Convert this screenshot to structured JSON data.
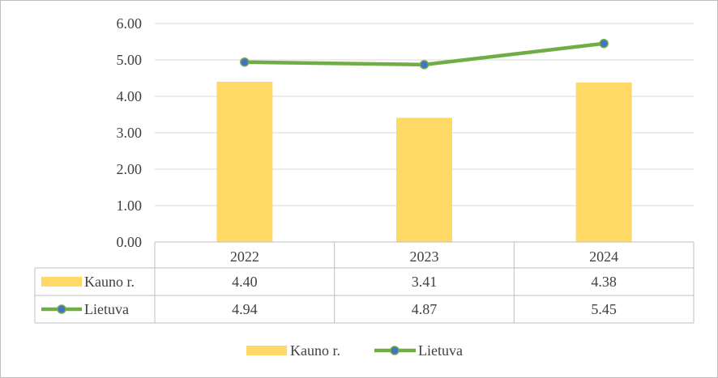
{
  "chart_data": {
    "type": "bar",
    "categories": [
      "2022",
      "2023",
      "2024"
    ],
    "series": [
      {
        "name": "Kauno r.",
        "type": "bar",
        "values": [
          4.4,
          3.41,
          4.38
        ],
        "labels": [
          "4.40",
          "3.41",
          "4.38"
        ],
        "color": "#FFD966"
      },
      {
        "name": "Lietuva",
        "type": "line",
        "values": [
          4.94,
          4.87,
          5.45
        ],
        "labels": [
          "4.94",
          "4.87",
          "5.45"
        ],
        "color": "#70AD47",
        "marker_color": "#4472C4"
      }
    ],
    "yticks": [
      "0.00",
      "1.00",
      "2.00",
      "3.00",
      "4.00",
      "5.00",
      "6.00"
    ],
    "ylim": [
      0,
      6
    ],
    "grid": true,
    "data_table": true,
    "legend": "bottom",
    "title": "",
    "xlabel": "",
    "ylabel": ""
  }
}
